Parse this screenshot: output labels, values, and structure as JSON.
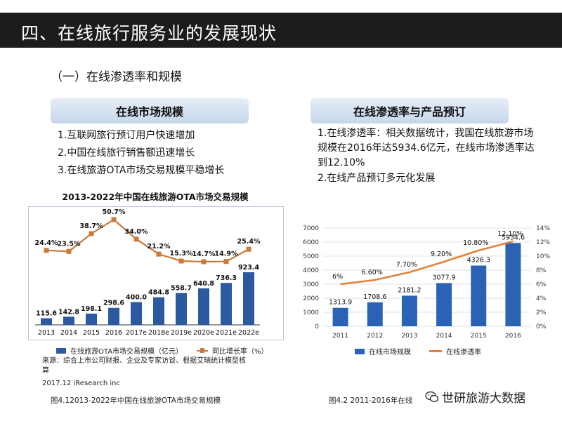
{
  "slide": {
    "title": "四、在线旅行服务业的发展现状",
    "section_heading": "（一）在线渗透率和规模"
  },
  "left_panel": {
    "heading": "在线市场规模",
    "points": [
      "1.互联网旅行预订用户快速增加",
      "2.中国在线旅行销售额迅速增长",
      "3.在线旅游OTA市场交易规模平稳增长"
    ],
    "source": "来源：综合上市公司财报、企业及专家访谈、根据艾瑞统计模型核算",
    "copyright": "2017.12 iResearch inc",
    "caption": "图4.12013-2022年中国在线旅游OTA市场交易规模"
  },
  "right_panel": {
    "heading": "在线渗透率与产品预订",
    "point1": "1.在线渗透率：相关数据统计，我国在线旅游市场规模在2016年达5934.6亿元，在线市场渗透率达到12.10%",
    "point2": "2.在线产品预订多元化发展",
    "caption": "图4.2 2011-2016年在线"
  },
  "watermark": {
    "icon": "wechat-icon",
    "text": "世研旅游大数据"
  },
  "colors": {
    "title_bar": "#1c1c1c",
    "bar_left": "#2c5aa0",
    "line_left": "#c97a3a",
    "bar_right": "#2a63b5",
    "line_right": "#e0833a"
  },
  "chart_data": [
    {
      "type": "bar",
      "title": "2013-2022年中国在线旅游OTA市场交易规模",
      "categories": [
        "2013",
        "2014",
        "2015",
        "2016",
        "2017e",
        "2018e",
        "2019e",
        "2020e",
        "2021e",
        "2022e"
      ],
      "series": [
        {
          "name": "在线旅游OTA市场交易规模（亿元）",
          "type": "bar",
          "values": [
            115.6,
            142.8,
            198.1,
            298.6,
            400.0,
            484.8,
            558.7,
            640.8,
            736.3,
            923.4
          ],
          "value_labels": [
            "115.6",
            "142.8",
            "198.1",
            "298.6",
            "400.0",
            "484.8",
            "558.7",
            "640.8",
            "736.3",
            "923.4"
          ]
        },
        {
          "name": "同比增长率（%）",
          "type": "line",
          "values": [
            24.4,
            23.5,
            38.7,
            50.7,
            34.0,
            21.2,
            15.3,
            14.7,
            14.9,
            25.4
          ],
          "value_labels": [
            "24.4%",
            "23.5%",
            "38.7%",
            "50.7%",
            "34.0%",
            "21.2%",
            "15.3%",
            "14.7%",
            "14.9%",
            "25.4%"
          ]
        }
      ],
      "legend_position": "bottom"
    },
    {
      "type": "bar",
      "categories": [
        "2011",
        "2012",
        "2013",
        "2014",
        "2015",
        "2016"
      ],
      "y_ticks": [
        "0",
        "1000",
        "2000",
        "3000",
        "4000",
        "5000",
        "6000",
        "7000"
      ],
      "y2_ticks": [
        "0%",
        "2%",
        "4%",
        "6%",
        "8%",
        "10%",
        "12%",
        "14%"
      ],
      "ylim": [
        0,
        7000
      ],
      "y2lim": [
        0,
        14
      ],
      "grid": true,
      "series": [
        {
          "name": "在线市场规模",
          "type": "bar",
          "values": [
            1313.9,
            1708.6,
            2181.2,
            3077.9,
            4326.3,
            5934.6
          ],
          "value_labels": [
            "1313.9",
            "1708.6",
            "2181.2",
            "3077.9",
            "4326.3",
            "5934.6"
          ]
        },
        {
          "name": "在线渗透率",
          "type": "line",
          "values": [
            6.0,
            6.6,
            7.7,
            9.2,
            10.8,
            12.1
          ],
          "value_labels": [
            "6%",
            "6.60%",
            "7.70%",
            "9.20%",
            "10.80%",
            "12.10%"
          ]
        }
      ],
      "legend_position": "bottom"
    }
  ]
}
